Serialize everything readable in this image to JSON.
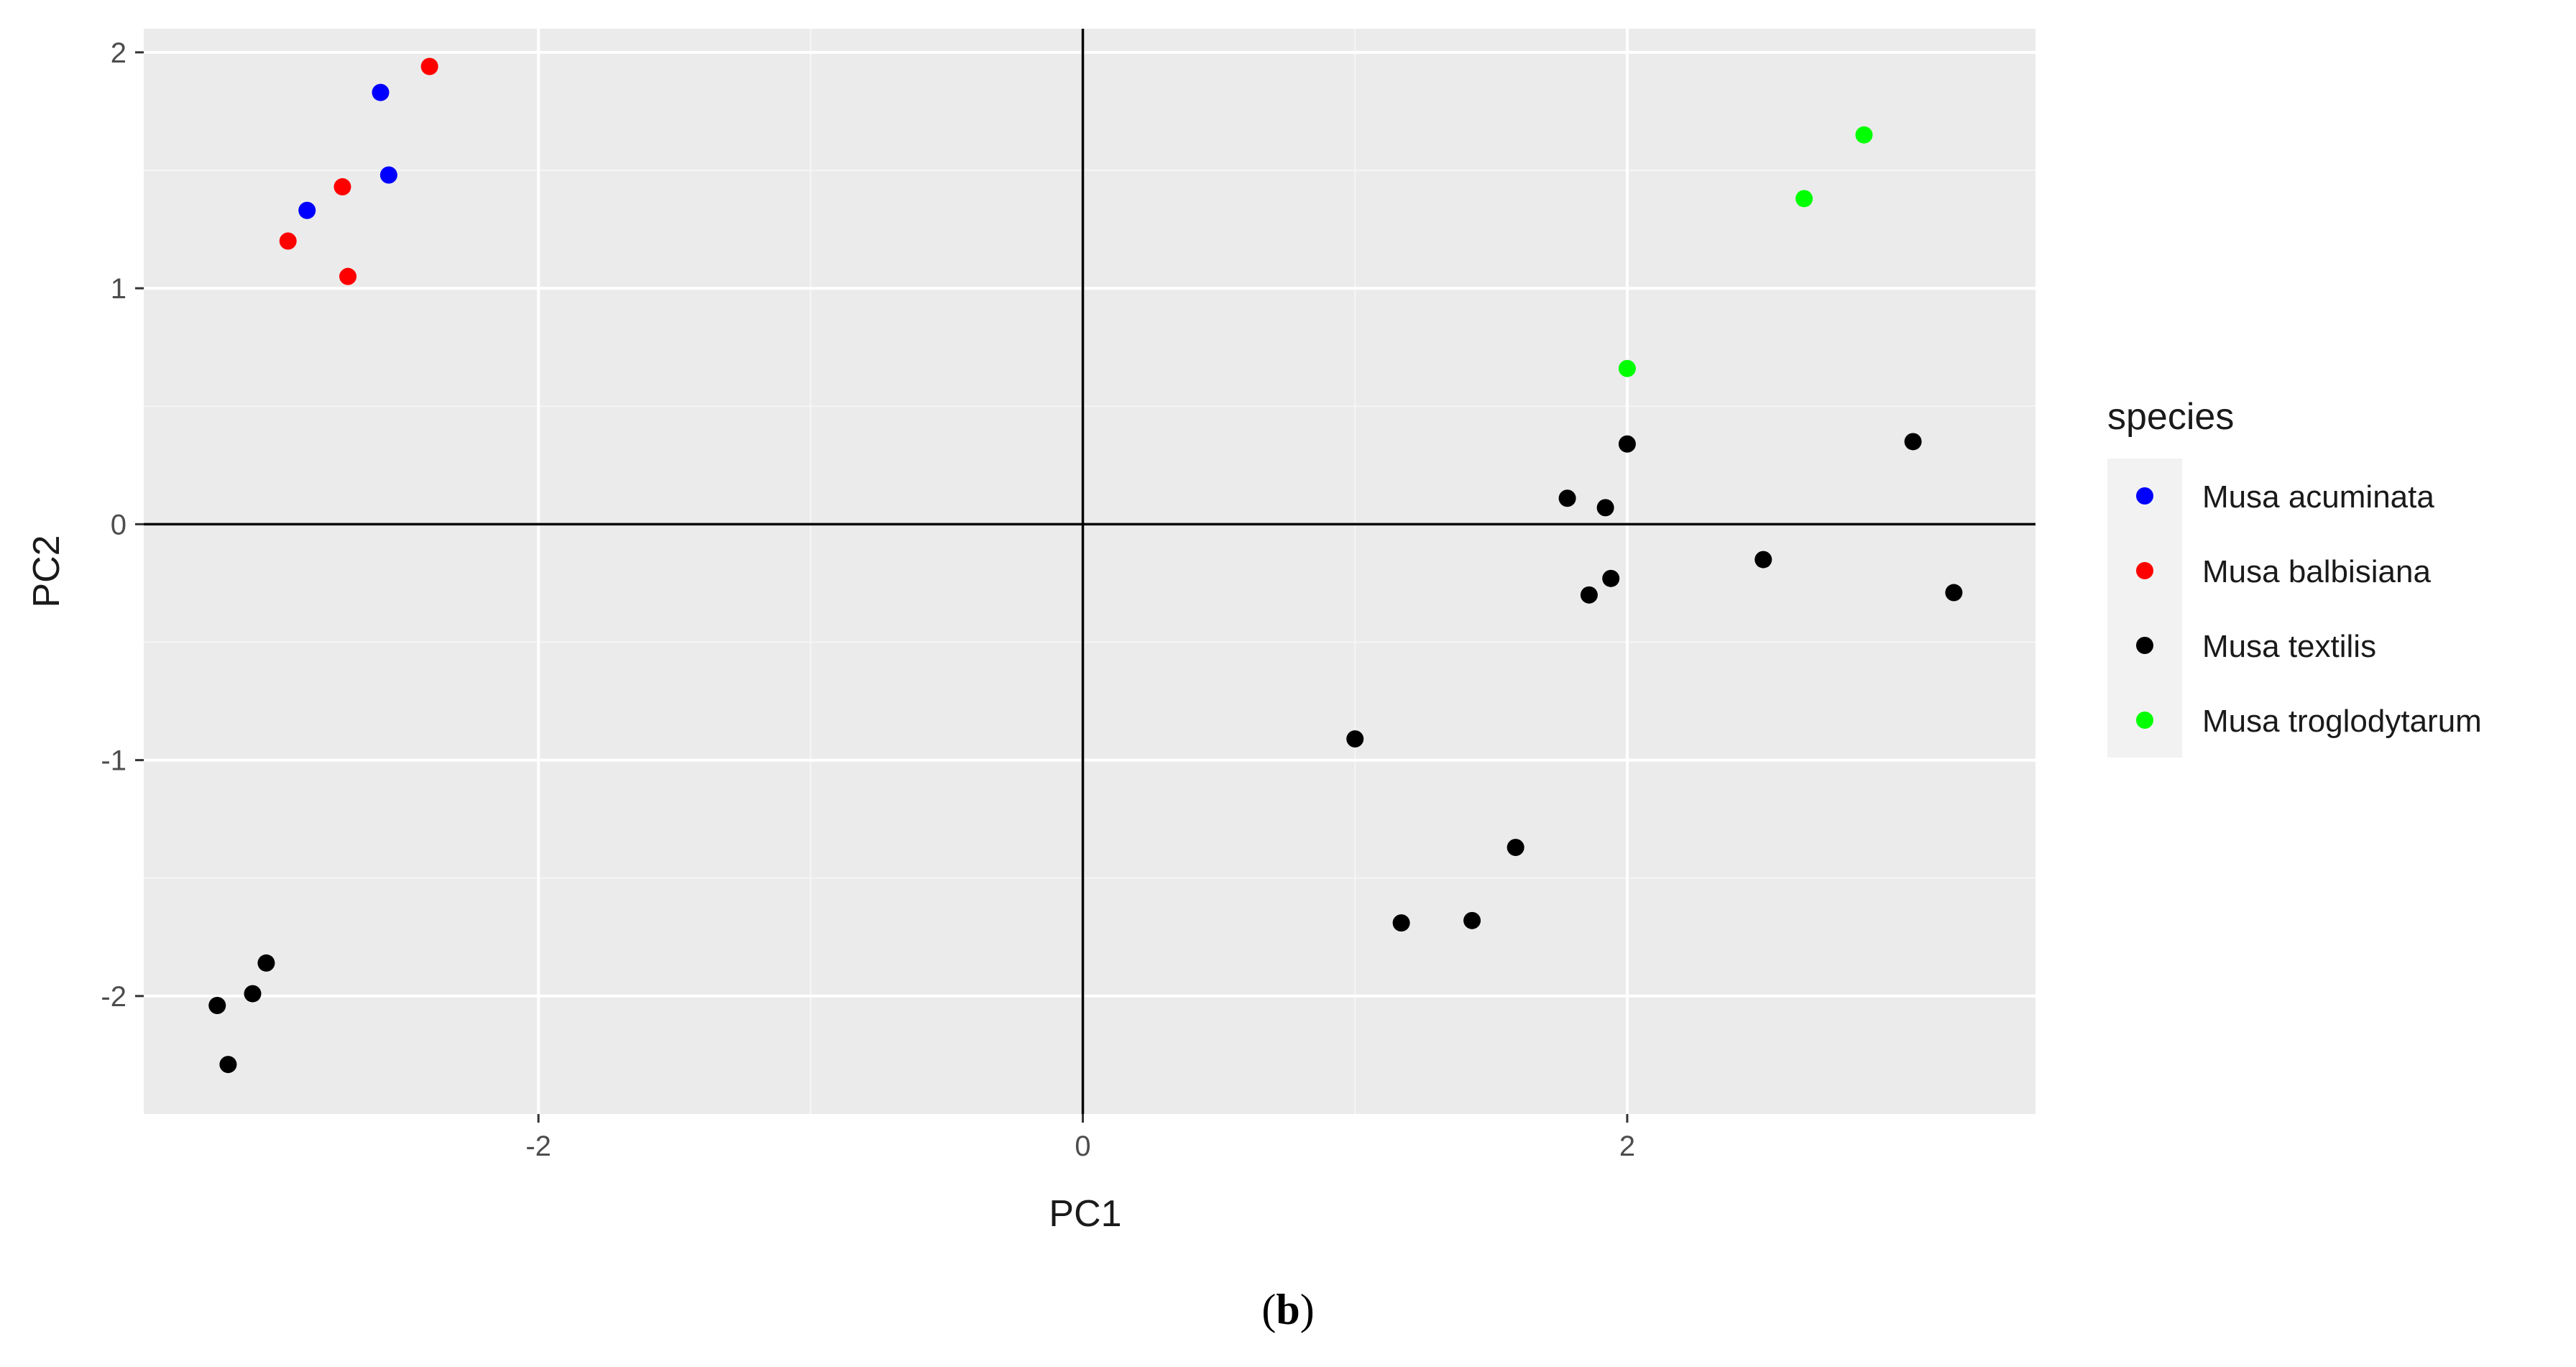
{
  "chart_data": {
    "type": "scatter",
    "xlabel": "PC1",
    "ylabel": "PC2",
    "xlim": [
      -3.45,
      3.5
    ],
    "ylim": [
      -2.5,
      2.1
    ],
    "x_ticks": [
      -2,
      0,
      2
    ],
    "y_ticks": [
      -2,
      -1,
      0,
      1,
      2
    ],
    "x_tick_labels": [
      "-2",
      "0",
      "2"
    ],
    "y_tick_labels": [
      "-2",
      "-1",
      "0",
      "1",
      "2"
    ],
    "grid": true,
    "reference_lines": {
      "x": 0,
      "y": 0
    },
    "legend": {
      "title": "species",
      "position": "right"
    },
    "series": [
      {
        "name": "Musa acuminata",
        "color": "#0000ff",
        "points": [
          {
            "x": -2.58,
            "y": 1.83
          },
          {
            "x": -2.55,
            "y": 1.48
          },
          {
            "x": -2.85,
            "y": 1.33
          }
        ]
      },
      {
        "name": "Musa balbisiana",
        "color": "#ff0000",
        "points": [
          {
            "x": -2.4,
            "y": 1.94
          },
          {
            "x": -2.72,
            "y": 1.43
          },
          {
            "x": -2.92,
            "y": 1.2
          },
          {
            "x": -2.7,
            "y": 1.05
          }
        ]
      },
      {
        "name": "Musa textilis",
        "color": "#000000",
        "points": [
          {
            "x": -3.0,
            "y": -1.86
          },
          {
            "x": -3.05,
            "y": -1.99
          },
          {
            "x": -3.18,
            "y": -2.04
          },
          {
            "x": -3.14,
            "y": -2.29
          },
          {
            "x": 1.0,
            "y": -0.91
          },
          {
            "x": 1.17,
            "y": -1.69
          },
          {
            "x": 1.43,
            "y": -1.68
          },
          {
            "x": 1.59,
            "y": -1.37
          },
          {
            "x": 1.78,
            "y": 0.11
          },
          {
            "x": 1.92,
            "y": 0.07
          },
          {
            "x": 2.0,
            "y": 0.34
          },
          {
            "x": 1.94,
            "y": -0.23
          },
          {
            "x": 1.86,
            "y": -0.3
          },
          {
            "x": 2.5,
            "y": -0.15
          },
          {
            "x": 3.05,
            "y": 0.35
          },
          {
            "x": 3.2,
            "y": -0.29
          }
        ]
      },
      {
        "name": "Musa troglodytarum",
        "color": "#00ff00",
        "points": [
          {
            "x": 2.87,
            "y": 1.65
          },
          {
            "x": 2.65,
            "y": 1.38
          },
          {
            "x": 2.0,
            "y": 0.66
          }
        ]
      }
    ]
  },
  "caption": {
    "open": "(",
    "letter": "b",
    "close": ")"
  },
  "colors": {
    "panel_background": "#ebebeb",
    "grid_major": "#ffffff",
    "grid_minor": "#f5f5f5",
    "reference_line": "#000000"
  }
}
